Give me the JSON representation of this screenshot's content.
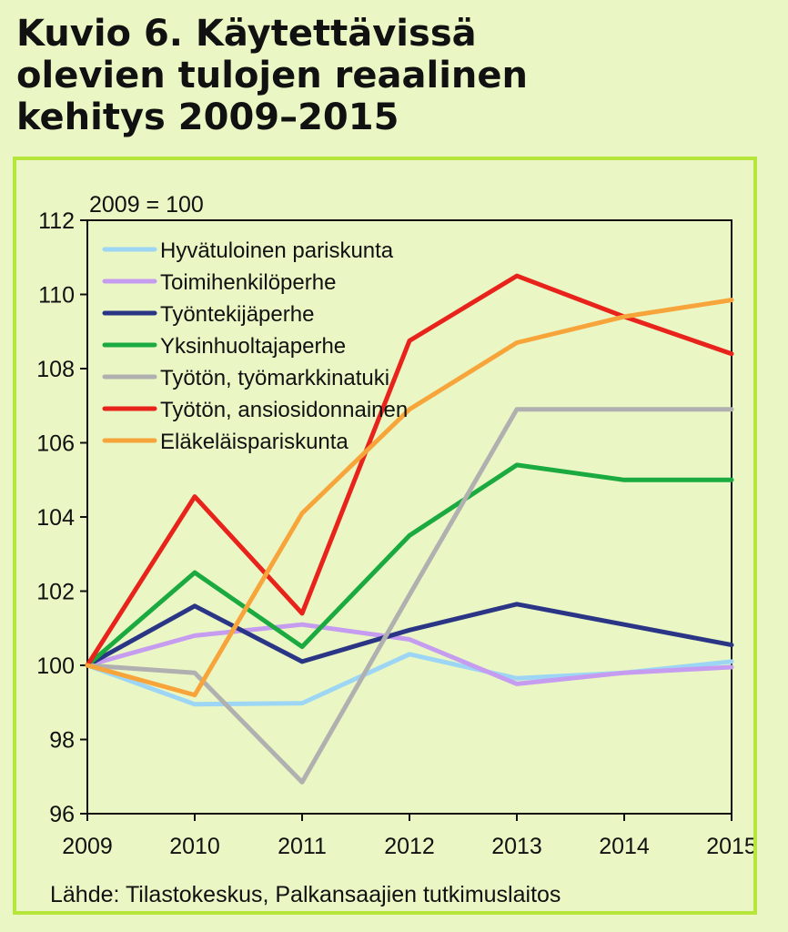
{
  "title_lines": [
    "Kuvio 6. Käytettävissä",
    "olevien tulojen reaalinen",
    "kehitys 2009–2015"
  ],
  "colors": {
    "background": "#eaf7c4",
    "panel_border": "#b6e63c"
  },
  "chart_data": {
    "type": "line",
    "title": "Kuvio 6. Käytettävissä olevien tulojen reaalinen kehitys 2009–2015",
    "index_note": "2009 = 100",
    "source": "Lähde: Tilastokeskus, Palkansaajien tutkimuslaitos",
    "x": [
      "2009",
      "2010",
      "2011",
      "2012",
      "2013",
      "2014",
      "2015"
    ],
    "ylim": [
      96,
      112
    ],
    "yticks": [
      96,
      98,
      100,
      102,
      104,
      106,
      108,
      110,
      112
    ],
    "grid": false,
    "legend_position": "top-left",
    "series": [
      {
        "name": "Hyvätuloinen pariskunta",
        "color": "#9dd6f5",
        "values": [
          100,
          98.95,
          98.98,
          100.3,
          99.65,
          99.8,
          100.1
        ]
      },
      {
        "name": "Toimihenkilöperhe",
        "color": "#c59cf0",
        "values": [
          100,
          100.8,
          101.1,
          100.7,
          99.5,
          99.8,
          99.95
        ]
      },
      {
        "name": "Työntekijäperhe",
        "color": "#2b3585",
        "values": [
          100,
          101.6,
          100.1,
          100.95,
          101.65,
          101.1,
          100.55
        ]
      },
      {
        "name": "Yksinhuoltajaperhe",
        "color": "#1aaa40",
        "values": [
          100,
          102.5,
          100.5,
          103.5,
          105.4,
          105.0,
          105.0
        ]
      },
      {
        "name": "Työtön, työmarkkinatuki",
        "color": "#b0b0b0",
        "values": [
          100,
          99.8,
          96.85,
          101.9,
          106.9,
          106.9,
          106.9
        ]
      },
      {
        "name": "Työtön, ansiosidonnainen",
        "color": "#e8231c",
        "values": [
          100,
          104.55,
          101.4,
          108.75,
          110.5,
          109.4,
          108.4
        ]
      },
      {
        "name": "Eläkeläispariskunta",
        "color": "#f7a53b",
        "values": [
          100,
          99.2,
          104.1,
          106.9,
          108.7,
          109.4,
          109.85
        ]
      }
    ]
  }
}
